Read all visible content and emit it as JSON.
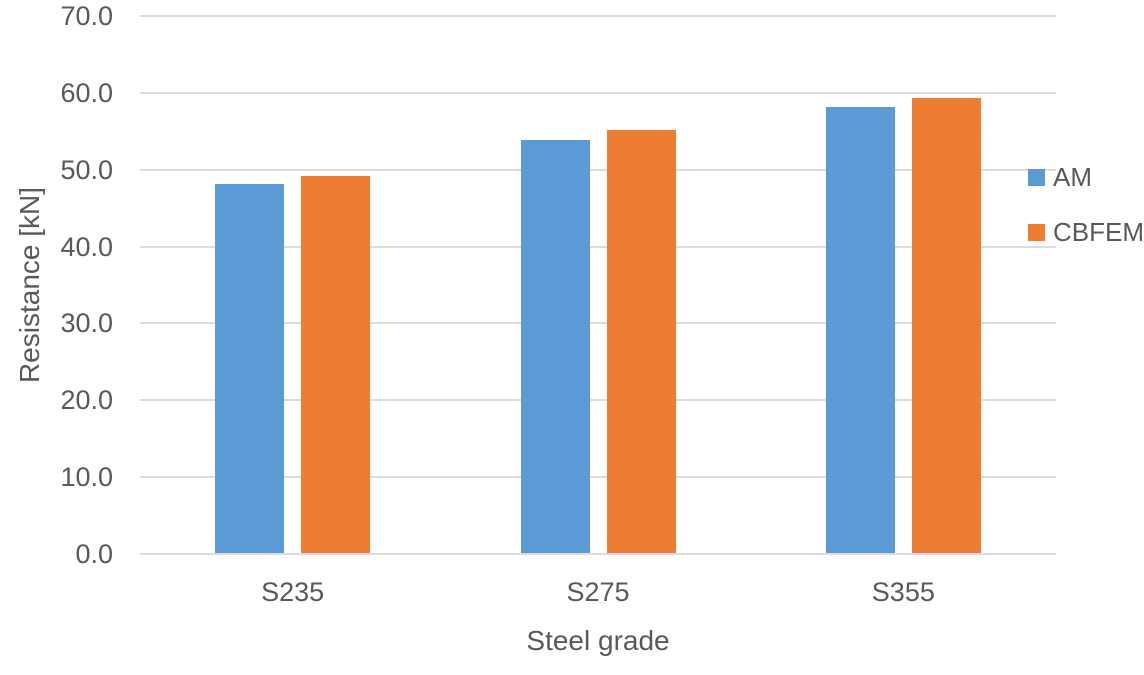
{
  "chart_data": {
    "type": "bar",
    "title": "",
    "categories": [
      "S235",
      "S275",
      "S355"
    ],
    "series": [
      {
        "name": "AM",
        "color": "#5B9BD5",
        "values": [
          48.0,
          53.8,
          58.0
        ]
      },
      {
        "name": "CBFEM",
        "color": "#ED7D31",
        "values": [
          49.0,
          55.0,
          59.2
        ]
      }
    ],
    "xlabel": "Steel grade",
    "ylabel": "Resistance [kN]",
    "ylim": [
      0,
      70
    ],
    "ytick_step": 10,
    "ytick_labels": [
      "0.0",
      "10.0",
      "20.0",
      "30.0",
      "40.0",
      "50.0",
      "60.0",
      "70.0"
    ],
    "grid": "horizontal",
    "legend_position": "right",
    "colors": {
      "gridline": "#DCDCDC",
      "axis_line": "#DCDCDC",
      "text": "#595959",
      "background": "#FFFFFF"
    }
  }
}
